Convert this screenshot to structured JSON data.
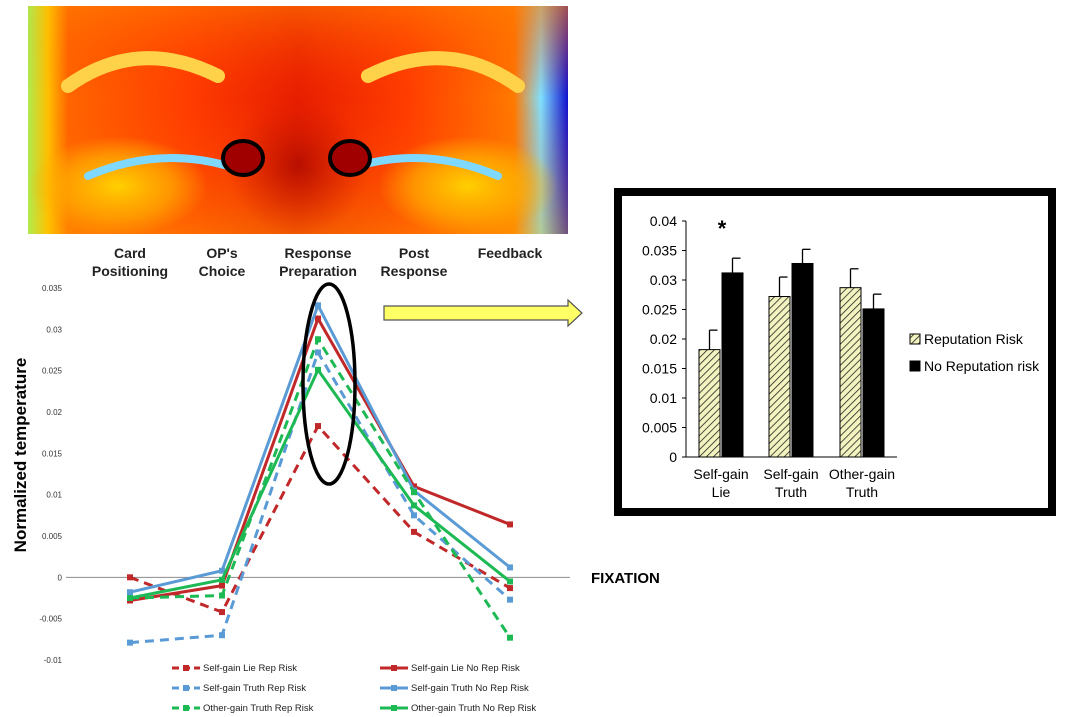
{
  "thermal_image": {
    "description_icon": "thermal-face-icon"
  },
  "fixation_label": "FIXATION",
  "chart_data": [
    {
      "type": "line",
      "ylabel": "Normalized temperature",
      "xlabel": "",
      "phases": [
        "Card Positioning",
        "OP's Choice",
        "Response Preparation",
        "Post Response",
        "Feedback"
      ],
      "x": [
        0,
        1,
        2,
        3,
        4
      ],
      "ylim": [
        -0.01,
        0.035
      ],
      "yticks": [
        -0.01,
        -0.005,
        0,
        0.005,
        0.01,
        0.015,
        0.02,
        0.025,
        0.03,
        0.035
      ],
      "ytick_labels": [
        "-0.01",
        "-0.005",
        "0",
        "0.005",
        "0.01",
        "0.015",
        "0.02",
        "0.025",
        "0.03",
        "0.035"
      ],
      "series": [
        {
          "name": "Self-gain Lie Rep Risk",
          "color": "#c0282a",
          "dashed": true,
          "marker": "diamond",
          "values": [
            0.0,
            -0.0042,
            0.0183,
            0.0055,
            -0.0013
          ]
        },
        {
          "name": "Self-gain Lie No Rep Risk",
          "color": "#c0282a",
          "dashed": false,
          "marker": "square",
          "values": [
            -0.0028,
            -0.001,
            0.0313,
            0.011,
            0.0064
          ]
        },
        {
          "name": "Self-gain Truth Rep Risk",
          "color": "#5b9bd5",
          "dashed": true,
          "marker": "triangle",
          "values": [
            -0.0079,
            -0.007,
            0.0272,
            0.0075,
            -0.0027
          ]
        },
        {
          "name": "Self-gain Truth No Rep Risk",
          "color": "#5b9bd5",
          "dashed": false,
          "marker": "square",
          "values": [
            -0.0018,
            0.0008,
            0.0329,
            0.0105,
            0.0012
          ]
        },
        {
          "name": "Other-gain Truth Rep Risk",
          "color": "#1db954",
          "dashed": true,
          "marker": "square",
          "values": [
            -0.0025,
            -0.0022,
            0.0288,
            0.0103,
            -0.0073
          ]
        },
        {
          "name": "Other-gain Truth No Rep Risk",
          "color": "#1db954",
          "dashed": false,
          "marker": "circle",
          "values": [
            -0.0025,
            -0.0003,
            0.0251,
            0.0087,
            -0.0005
          ]
        }
      ],
      "legend": "bottom"
    },
    {
      "type": "bar",
      "categories": [
        "Self-gain Lie",
        "Self-gain Truth",
        "Other-gain Truth"
      ],
      "category_lines": [
        [
          "Self-gain",
          "Lie"
        ],
        [
          "Self-gain",
          "Truth"
        ],
        [
          "Other-gain",
          "Truth"
        ]
      ],
      "ylim": [
        0,
        0.04
      ],
      "yticks": [
        0,
        0.005,
        0.01,
        0.015,
        0.02,
        0.025,
        0.03,
        0.035,
        0.04
      ],
      "ytick_labels": [
        "0",
        "0.005",
        "0.01",
        "0.015",
        "0.02",
        "0.025",
        "0.03",
        "0.035",
        "0.04"
      ],
      "series": [
        {
          "name": "Reputation Risk",
          "pattern": "hatched",
          "color": "#f3f3c0",
          "values": [
            0.0182,
            0.0272,
            0.0287
          ],
          "errors": [
            0.0033,
            0.0033,
            0.0032
          ]
        },
        {
          "name": "No Reputation risk",
          "pattern": "solid",
          "color": "#000000",
          "values": [
            0.0312,
            0.0328,
            0.0251
          ],
          "errors": [
            0.0025,
            0.0024,
            0.0025
          ]
        }
      ],
      "annotation": "*",
      "annotation_category": 0,
      "legend": "right"
    }
  ]
}
